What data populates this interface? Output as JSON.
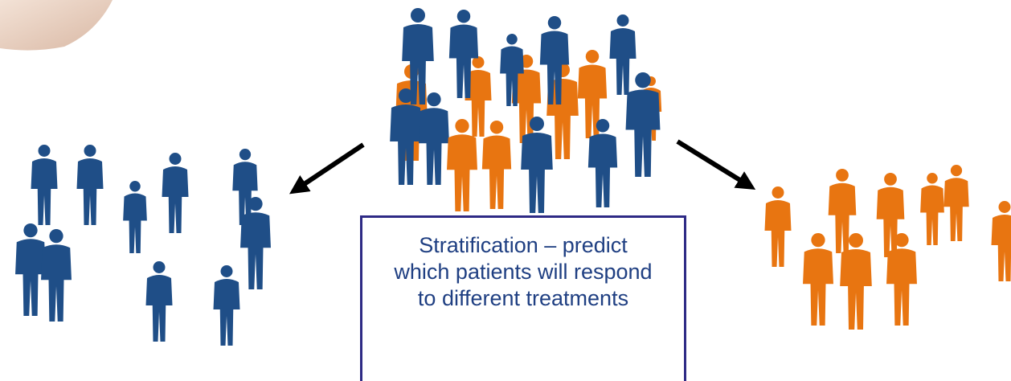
{
  "box": {
    "text": "Stratification – predict which patients will respond to different treatments"
  }
}
